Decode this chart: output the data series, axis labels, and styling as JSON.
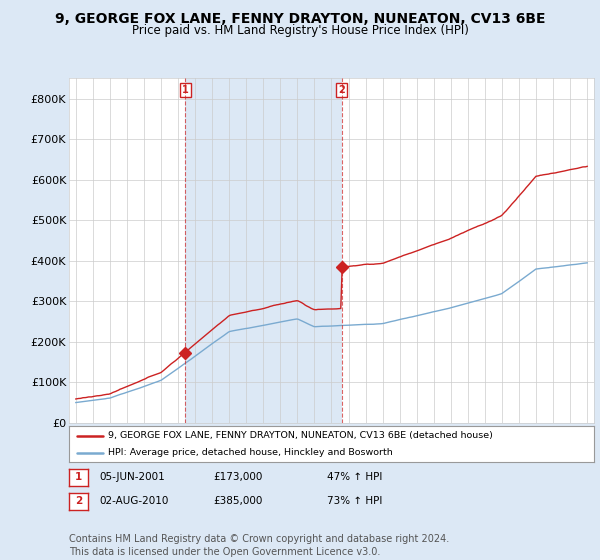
{
  "title": "9, GEORGE FOX LANE, FENNY DRAYTON, NUNEATON, CV13 6BE",
  "subtitle": "Price paid vs. HM Land Registry's House Price Index (HPI)",
  "title_fontsize": 10,
  "subtitle_fontsize": 8.5,
  "background_color": "#dce8f5",
  "plot_background_color": "#ffffff",
  "shaded_region_color": "#dce8f5",
  "grid_color": "#cccccc",
  "ylim": [
    0,
    850000
  ],
  "yticks": [
    0,
    100000,
    200000,
    300000,
    400000,
    500000,
    600000,
    700000,
    800000
  ],
  "ytick_labels": [
    "£0",
    "£100K",
    "£200K",
    "£300K",
    "£400K",
    "£500K",
    "£600K",
    "£700K",
    "£800K"
  ],
  "hpi_color": "#7aaad0",
  "price_color": "#cc2222",
  "purchase_year_1": 2001.43,
  "purchase_year_2": 2010.59,
  "purchase_price_1": 173000,
  "purchase_price_2": 385000,
  "legend_line1": "9, GEORGE FOX LANE, FENNY DRAYTON, NUNEATON, CV13 6BE (detached house)",
  "legend_line2": "HPI: Average price, detached house, Hinckley and Bosworth",
  "table_row1": [
    "1",
    "05-JUN-2001",
    "£173,000",
    "47% ↑ HPI"
  ],
  "table_row2": [
    "2",
    "02-AUG-2010",
    "£385,000",
    "73% ↑ HPI"
  ],
  "footer": "Contains HM Land Registry data © Crown copyright and database right 2024.\nThis data is licensed under the Open Government Licence v3.0.",
  "footer_fontsize": 7,
  "label1_box_color": "#cc2222"
}
